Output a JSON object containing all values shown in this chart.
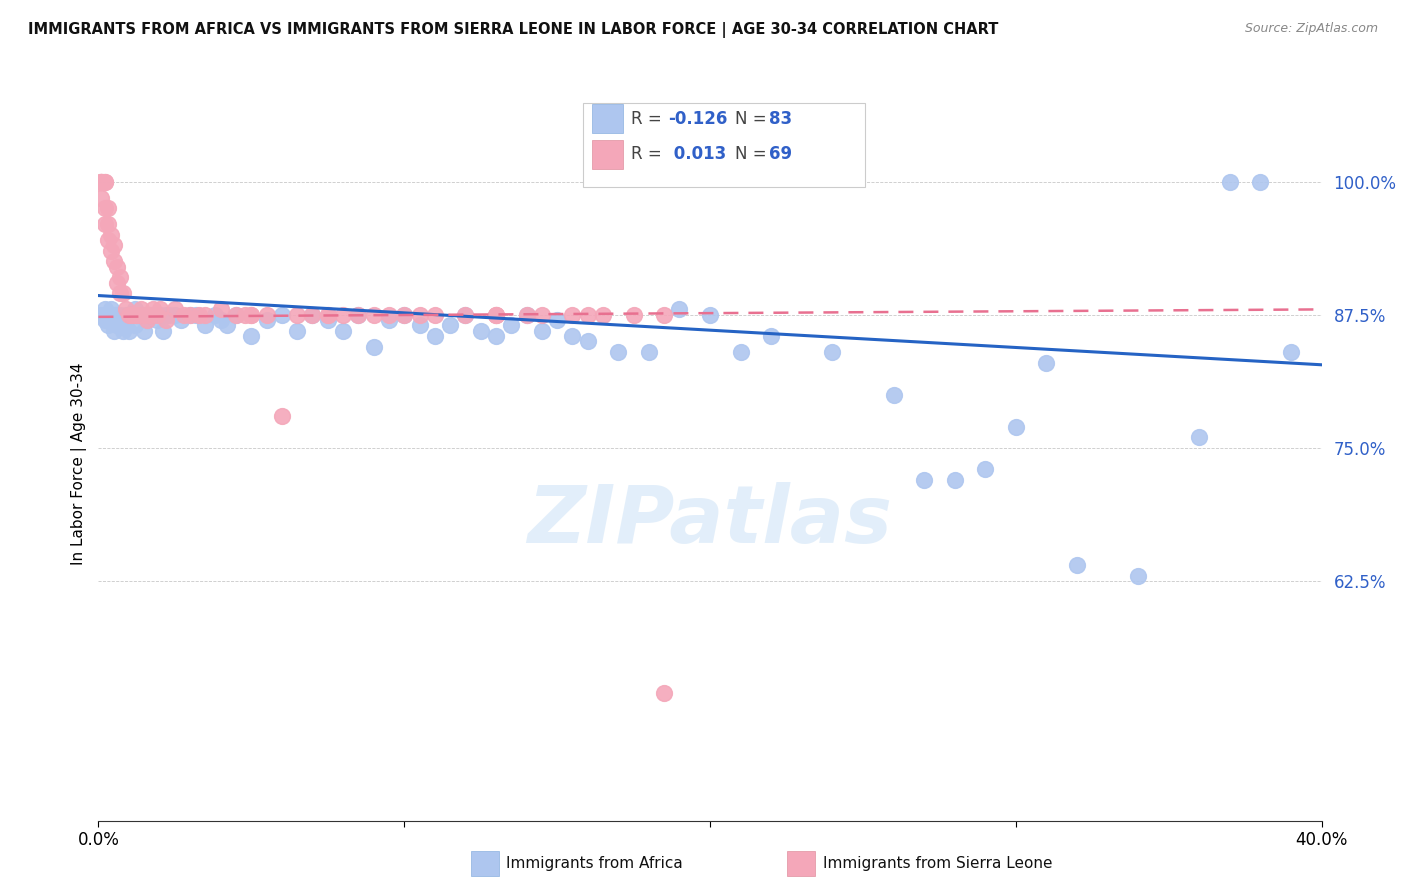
{
  "title": "IMMIGRANTS FROM AFRICA VS IMMIGRANTS FROM SIERRA LEONE IN LABOR FORCE | AGE 30-34 CORRELATION CHART",
  "source": "Source: ZipAtlas.com",
  "ylabel": "In Labor Force | Age 30-34",
  "xlim": [
    0.0,
    0.4
  ],
  "ylim": [
    0.4,
    1.07
  ],
  "yticks": [
    0.625,
    0.75,
    0.875,
    1.0
  ],
  "ytick_labels": [
    "62.5%",
    "75.0%",
    "87.5%",
    "100.0%"
  ],
  "xticks": [
    0.0,
    0.1,
    0.2,
    0.3,
    0.4
  ],
  "xtick_labels": [
    "0.0%",
    "",
    "",
    "",
    "40.0%"
  ],
  "legend_africa_R": "-0.126",
  "legend_africa_N": "83",
  "legend_sierra_R": "0.013",
  "legend_sierra_N": "69",
  "africa_color": "#aec6ef",
  "sierra_color": "#f4a7b9",
  "trendline_africa_color": "#2563c4",
  "trendline_sierra_color": "#e87090",
  "watermark": "ZIPatlas",
  "africa_scatter_x": [
    0.001,
    0.002,
    0.002,
    0.003,
    0.003,
    0.004,
    0.004,
    0.005,
    0.005,
    0.006,
    0.006,
    0.007,
    0.008,
    0.008,
    0.009,
    0.01,
    0.01,
    0.011,
    0.012,
    0.012,
    0.013,
    0.014,
    0.015,
    0.015,
    0.016,
    0.017,
    0.018,
    0.019,
    0.02,
    0.021,
    0.022,
    0.023,
    0.025,
    0.027,
    0.03,
    0.032,
    0.035,
    0.038,
    0.04,
    0.042,
    0.045,
    0.05,
    0.055,
    0.06,
    0.065,
    0.07,
    0.075,
    0.08,
    0.085,
    0.09,
    0.095,
    0.1,
    0.105,
    0.11,
    0.115,
    0.12,
    0.125,
    0.13,
    0.135,
    0.14,
    0.145,
    0.15,
    0.155,
    0.16,
    0.17,
    0.18,
    0.19,
    0.2,
    0.21,
    0.22,
    0.24,
    0.26,
    0.27,
    0.28,
    0.29,
    0.3,
    0.31,
    0.32,
    0.34,
    0.36,
    0.37,
    0.38,
    0.39
  ],
  "africa_scatter_y": [
    0.875,
    0.88,
    0.87,
    0.875,
    0.865,
    0.88,
    0.87,
    0.875,
    0.86,
    0.875,
    0.865,
    0.875,
    0.87,
    0.86,
    0.875,
    0.875,
    0.86,
    0.875,
    0.88,
    0.865,
    0.875,
    0.875,
    0.875,
    0.86,
    0.87,
    0.875,
    0.875,
    0.87,
    0.875,
    0.86,
    0.875,
    0.875,
    0.875,
    0.87,
    0.875,
    0.875,
    0.865,
    0.875,
    0.87,
    0.865,
    0.875,
    0.855,
    0.87,
    0.875,
    0.86,
    0.875,
    0.87,
    0.86,
    0.875,
    0.845,
    0.87,
    0.875,
    0.865,
    0.855,
    0.865,
    0.875,
    0.86,
    0.855,
    0.865,
    0.875,
    0.86,
    0.87,
    0.855,
    0.85,
    0.84,
    0.84,
    0.88,
    0.875,
    0.84,
    0.855,
    0.84,
    0.8,
    0.72,
    0.72,
    0.73,
    0.77,
    0.83,
    0.64,
    0.63,
    0.76,
    1.0,
    1.0,
    0.84
  ],
  "sierra_scatter_x": [
    0.001,
    0.001,
    0.001,
    0.001,
    0.001,
    0.002,
    0.002,
    0.002,
    0.002,
    0.003,
    0.003,
    0.003,
    0.004,
    0.004,
    0.005,
    0.005,
    0.006,
    0.006,
    0.007,
    0.007,
    0.008,
    0.009,
    0.01,
    0.011,
    0.012,
    0.013,
    0.014,
    0.015,
    0.016,
    0.017,
    0.018,
    0.019,
    0.02,
    0.022,
    0.025,
    0.028,
    0.03,
    0.033,
    0.04,
    0.045,
    0.055,
    0.065,
    0.075,
    0.085,
    0.095,
    0.105,
    0.12,
    0.13,
    0.145,
    0.155,
    0.05,
    0.06,
    0.07,
    0.08,
    0.09,
    0.1,
    0.11,
    0.13,
    0.16,
    0.175,
    0.035,
    0.048,
    0.14,
    0.165,
    0.185,
    0.05,
    0.075,
    0.13,
    0.185
  ],
  "sierra_scatter_y": [
    1.0,
    1.0,
    1.0,
    1.0,
    0.985,
    1.0,
    1.0,
    0.975,
    0.96,
    0.975,
    0.96,
    0.945,
    0.95,
    0.935,
    0.94,
    0.925,
    0.92,
    0.905,
    0.91,
    0.895,
    0.895,
    0.88,
    0.875,
    0.875,
    0.875,
    0.875,
    0.88,
    0.875,
    0.87,
    0.875,
    0.88,
    0.875,
    0.88,
    0.87,
    0.88,
    0.875,
    0.875,
    0.875,
    0.88,
    0.875,
    0.875,
    0.875,
    0.875,
    0.875,
    0.875,
    0.875,
    0.875,
    0.875,
    0.875,
    0.875,
    0.875,
    0.78,
    0.875,
    0.875,
    0.875,
    0.875,
    0.875,
    0.875,
    0.875,
    0.875,
    0.875,
    0.875,
    0.875,
    0.875,
    0.875,
    0.875,
    0.875,
    0.875,
    0.52
  ],
  "africa_trend_x": [
    0.0,
    0.4
  ],
  "africa_trend_y": [
    0.893,
    0.828
  ],
  "sierra_trend_x": [
    0.0,
    0.4
  ],
  "sierra_trend_y": [
    0.873,
    0.88
  ]
}
